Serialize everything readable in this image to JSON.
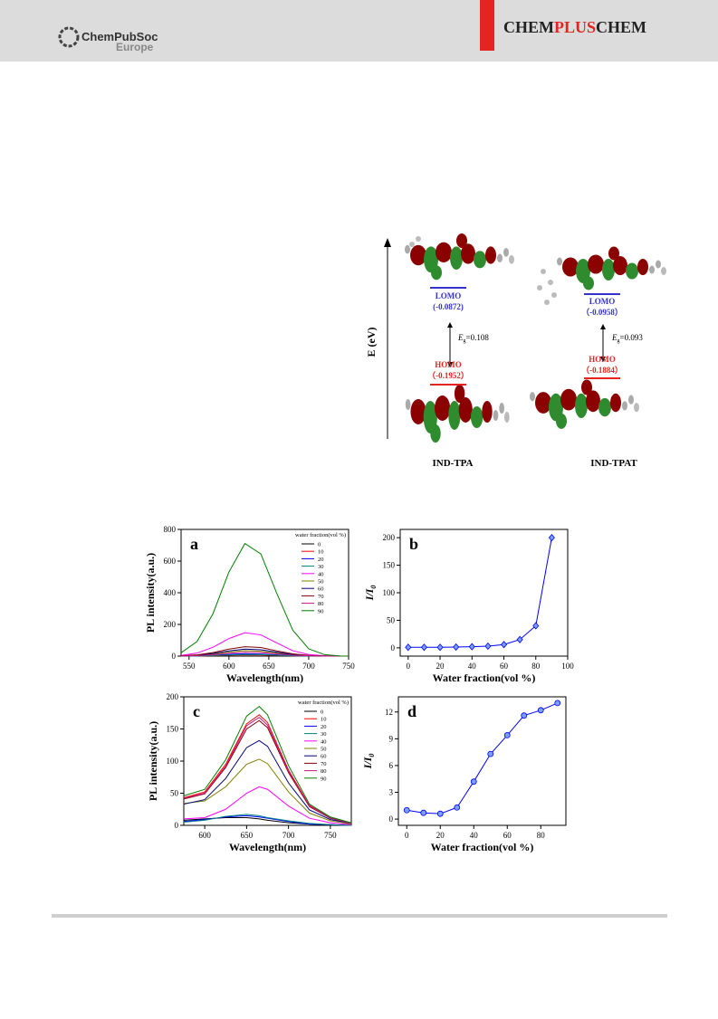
{
  "header": {
    "society": "ChemPubSoc",
    "region": "Europe",
    "journal": [
      "CHEM",
      "PLUS",
      "CHEM"
    ]
  },
  "figure1": {
    "axis_label": "E (eV)",
    "molecules": [
      {
        "name": "IND-TPA",
        "lomo": "LOMO",
        "lomo_value": "(-0.0872)",
        "homo": "HOMO",
        "homo_value": "（-0.1952）",
        "gap": {
          "symbol": "E",
          "sub": "g",
          "value": "=0.108"
        }
      },
      {
        "name": "IND-TPAT",
        "lomo": "LOMO",
        "lomo_value": "（-0.0958）",
        "homo": "HOMO",
        "homo_value": "（-0.1884）",
        "gap": {
          "symbol": "E",
          "sub": "g",
          "value": "=0.093"
        }
      }
    ]
  },
  "chart_data": [
    {
      "type": "line",
      "panel": "a",
      "x_label": "Wavelength(nm)",
      "y_label": "PL intensity(a.u.)",
      "legend": "upper right",
      "legend_title": "water fraction(vol %)",
      "xlim": [
        540,
        750
      ],
      "xticks": [
        550,
        600,
        650,
        700,
        750
      ],
      "ylim": [
        0,
        800
      ],
      "yticks": [
        0,
        200,
        400,
        600,
        800
      ],
      "x": [
        540,
        560,
        580,
        600,
        620,
        640,
        660,
        680,
        700,
        720,
        740,
        750
      ],
      "series": [
        {
          "name": "0",
          "color": "#000000",
          "values": [
            0,
            2,
            4,
            9,
            12,
            11,
            7,
            3,
            1,
            0,
            0,
            0
          ]
        },
        {
          "name": "10",
          "color": "#ff0000",
          "values": [
            0,
            1,
            3,
            6,
            8,
            7,
            4,
            2,
            1,
            0,
            0,
            0
          ]
        },
        {
          "name": "20",
          "color": "#0000ff",
          "values": [
            0,
            2,
            6,
            11,
            15,
            13,
            8,
            3,
            1,
            0,
            0,
            0
          ]
        },
        {
          "name": "30",
          "color": "#008080",
          "values": [
            0,
            1,
            4,
            7,
            10,
            9,
            6,
            2,
            1,
            0,
            0,
            0
          ]
        },
        {
          "name": "40",
          "color": "#ff00ff",
          "values": [
            4,
            19,
            56,
            111,
            148,
            134,
            83,
            34,
            10,
            2,
            0,
            0
          ]
        },
        {
          "name": "50",
          "color": "#808000",
          "values": [
            1,
            4,
            13,
            26,
            35,
            31,
            19,
            8,
            2,
            0,
            0,
            0
          ]
        },
        {
          "name": "60",
          "color": "#000080",
          "values": [
            1,
            6,
            17,
            33,
            44,
            40,
            25,
            10,
            3,
            1,
            0,
            0
          ]
        },
        {
          "name": "70",
          "color": "#800000",
          "values": [
            2,
            8,
            22,
            44,
            59,
            54,
            33,
            14,
            4,
            1,
            0,
            0
          ]
        },
        {
          "name": "80",
          "color": "#c71585",
          "values": [
            1,
            3,
            9,
            18,
            25,
            22,
            14,
            6,
            2,
            0,
            0,
            0
          ]
        },
        {
          "name": "90",
          "color": "#008000",
          "values": [
            21,
            92,
            268,
            531,
            711,
            645,
            396,
            164,
            46,
            9,
            1,
            0
          ]
        }
      ]
    },
    {
      "type": "line",
      "panel": "b",
      "x_label": "Water fraction(vol %)",
      "y_label": "I/I",
      "y_label_sub": "0",
      "marker": "diamond",
      "xlim": [
        -5,
        100
      ],
      "xticks": [
        0,
        20,
        40,
        60,
        80,
        100
      ],
      "ylim": [
        -15,
        215
      ],
      "yticks": [
        0,
        50,
        100,
        150,
        200
      ],
      "x": [
        0,
        10,
        20,
        30,
        40,
        50,
        60,
        70,
        80,
        90
      ],
      "series": [
        {
          "color": "#0000ff",
          "values": [
            1,
            1,
            1,
            1.5,
            2,
            3,
            6,
            15,
            40,
            200
          ]
        }
      ]
    },
    {
      "type": "line",
      "panel": "c",
      "x_label": "Wavelength(nm)",
      "y_label": "PL intensity(a.u.)",
      "legend": "upper right",
      "legend_title": "water fraction(vol %)",
      "xlim": [
        575,
        775
      ],
      "xticks": [
        600,
        650,
        700,
        750
      ],
      "ylim": [
        0,
        200
      ],
      "yticks": [
        0,
        50,
        100,
        150,
        200
      ],
      "x": [
        575,
        600,
        625,
        650,
        665,
        675,
        700,
        725,
        750,
        775
      ],
      "series": [
        {
          "name": "0",
          "color": "#000000",
          "values": [
            8,
            10,
            12,
            12,
            10,
            8,
            4,
            2,
            1,
            0
          ]
        },
        {
          "name": "10",
          "color": "#ff0000",
          "values": [
            43,
            52,
            95,
            158,
            172,
            160,
            86,
            31,
            12,
            3
          ]
        },
        {
          "name": "20",
          "color": "#0000ff",
          "values": [
            6,
            9,
            13,
            15,
            13,
            11,
            6,
            2,
            1,
            0
          ]
        },
        {
          "name": "30",
          "color": "#008080",
          "values": [
            5,
            8,
            14,
            17,
            15,
            12,
            7,
            3,
            1,
            0
          ]
        },
        {
          "name": "40",
          "color": "#ff00ff",
          "values": [
            10,
            12,
            25,
            50,
            60,
            56,
            30,
            11,
            4,
            1
          ]
        },
        {
          "name": "50",
          "color": "#808000",
          "values": [
            34,
            38,
            60,
            95,
            103,
            96,
            52,
            19,
            7,
            2
          ]
        },
        {
          "name": "60",
          "color": "#000080",
          "values": [
            33,
            40,
            73,
            121,
            132,
            123,
            66,
            24,
            9,
            3
          ]
        },
        {
          "name": "70",
          "color": "#800000",
          "values": [
            41,
            49,
            90,
            150,
            163,
            152,
            82,
            29,
            11,
            3
          ]
        },
        {
          "name": "80",
          "color": "#c71585",
          "values": [
            42,
            50,
            92,
            155,
            168,
            156,
            84,
            30,
            12,
            3
          ]
        },
        {
          "name": "90",
          "color": "#008000",
          "values": [
            46,
            56,
            102,
            170,
            185,
            172,
            93,
            33,
            13,
            4
          ]
        }
      ]
    },
    {
      "type": "line",
      "panel": "d",
      "x_label": "Water fraction(vol %)",
      "y_label": "I/I",
      "y_label_sub": "0",
      "marker": "circle",
      "xlim": [
        -5,
        95
      ],
      "xticks": [
        0,
        20,
        40,
        60,
        80
      ],
      "ylim": [
        -0.7,
        13.7
      ],
      "yticks": [
        0,
        3,
        6,
        9,
        12
      ],
      "x": [
        0,
        10,
        20,
        30,
        40,
        50,
        60,
        70,
        80,
        90
      ],
      "series": [
        {
          "color": "#0000ff",
          "values": [
            1,
            0.7,
            0.6,
            1.3,
            4.2,
            7.3,
            9.4,
            11.6,
            12.2,
            13
          ]
        }
      ]
    }
  ]
}
